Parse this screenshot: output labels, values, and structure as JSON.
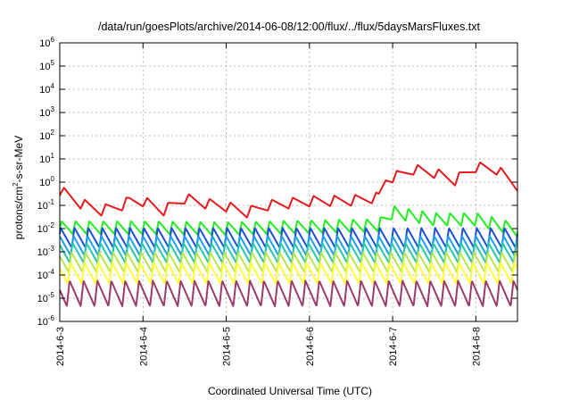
{
  "chart_data": {
    "type": "line",
    "title": "/data/run/goesPlots/archive/2014-06-08/12:00/flux/../flux/5daysMarsFluxes.txt",
    "xlabel": "Coordinated Universal Time (UTC)",
    "ylabel_main": "protons/cm",
    "ylabel_sup": "2",
    "ylabel_tail": "-s-sr-MeV",
    "x_range": [
      "2014-06-03",
      "2014-06-08 12:00"
    ],
    "x_ticks": [
      "2014-6-3",
      "2014-6-4",
      "2014-6-5",
      "2014-6-6",
      "2014-6-7",
      "2014-6-8"
    ],
    "y_scale": "log",
    "ylim": [
      1e-06,
      1000000.0
    ],
    "y_ticks": [
      {
        "base": "10",
        "exp": "-6"
      },
      {
        "base": "10",
        "exp": "-5"
      },
      {
        "base": "10",
        "exp": "-4"
      },
      {
        "base": "10",
        "exp": "-3"
      },
      {
        "base": "10",
        "exp": "-2"
      },
      {
        "base": "10",
        "exp": "-1"
      },
      {
        "base": "10",
        "exp": "0"
      },
      {
        "base": "10",
        "exp": "1"
      },
      {
        "base": "10",
        "exp": "2"
      },
      {
        "base": "10",
        "exp": "3"
      },
      {
        "base": "10",
        "exp": "4"
      },
      {
        "base": "10",
        "exp": "5"
      },
      {
        "base": "10",
        "exp": "6"
      }
    ],
    "grid": true,
    "series": [
      {
        "color": "#e8191c",
        "x": [
          "2014-06-03 00:00",
          "2014-06-03 06:00",
          "2014-06-03 12:00",
          "2014-06-03 18:00",
          "2014-06-03 20:00",
          "2014-06-04 00:00",
          "2014-06-04 06:00",
          "2014-06-04 12:00",
          "2014-06-04 18:00",
          "2014-06-05 00:00",
          "2014-06-05 06:00",
          "2014-06-05 12:00",
          "2014-06-06 00:00",
          "2014-06-06 12:00",
          "2014-06-06 20:00",
          "2014-06-06 22:00",
          "2014-06-07 02:00",
          "2014-06-07 06:00",
          "2014-06-07 12:00",
          "2014-06-07 18:00",
          "2014-06-08 00:00",
          "2014-06-08 06:00",
          "2014-06-08 12:00"
        ],
        "y": [
          0.45,
          0.12,
          0.06,
          0.1,
          0.15,
          0.15,
          0.06,
          0.2,
          0.12,
          0.09,
          0.05,
          0.1,
          0.15,
          0.16,
          0.22,
          1.3,
          2.0,
          3.5,
          2.5,
          1.2,
          4.5,
          3.5,
          0.7
        ],
        "osc_period_hours": 6,
        "osc_amplitude_decades": 0.45
      },
      {
        "color": "#22ee22",
        "x": [
          "2014-06-03 00:00",
          "2014-06-04 00:00",
          "2014-06-05 00:00",
          "2014-06-06 00:00",
          "2014-06-06 20:00",
          "2014-06-07 00:00",
          "2014-06-07 12:00",
          "2014-06-08 00:00",
          "2014-06-08 12:00"
        ],
        "y": [
          0.011,
          0.011,
          0.01,
          0.012,
          0.014,
          0.05,
          0.025,
          0.025,
          0.009
        ],
        "osc_period_hours": 4,
        "osc_amplitude_decades": 0.55
      },
      {
        "color": "#1c4fd8",
        "x": [
          "2014-06-03 00:00",
          "2014-06-08 12:00"
        ],
        "y": [
          0.004,
          0.004
        ],
        "osc_period_hours": 4,
        "osc_amplitude_decades": 0.85
      },
      {
        "color": "#1c9ef0",
        "x": [
          "2014-06-03 00:00",
          "2014-06-08 12:00"
        ],
        "y": [
          0.0018,
          0.0018
        ],
        "osc_period_hours": 4,
        "osc_amplitude_decades": 0.85
      },
      {
        "color": "#22c8a8",
        "x": [
          "2014-06-03 00:00",
          "2014-06-08 12:00"
        ],
        "y": [
          0.0009,
          0.0009
        ],
        "osc_period_hours": 4,
        "osc_amplitude_decades": 0.85
      },
      {
        "color": "#b7e84a",
        "x": [
          "2014-06-03 00:00",
          "2014-06-08 12:00"
        ],
        "y": [
          0.00035,
          0.00035
        ],
        "osc_period_hours": 4,
        "osc_amplitude_decades": 0.85
      },
      {
        "color": "#ffff3a",
        "x": [
          "2014-06-03 00:00",
          "2014-06-08 12:00"
        ],
        "y": [
          0.00012,
          0.00012
        ],
        "osc_period_hours": 4,
        "osc_amplitude_decades": 0.9
      },
      {
        "color": "#9b3a6c",
        "x": [
          "2014-06-03 00:00",
          "2014-06-08 12:00"
        ],
        "y": [
          1.6e-05,
          1.6e-05
        ],
        "osc_period_hours": 4,
        "osc_amplitude_decades": 1.1
      }
    ]
  }
}
